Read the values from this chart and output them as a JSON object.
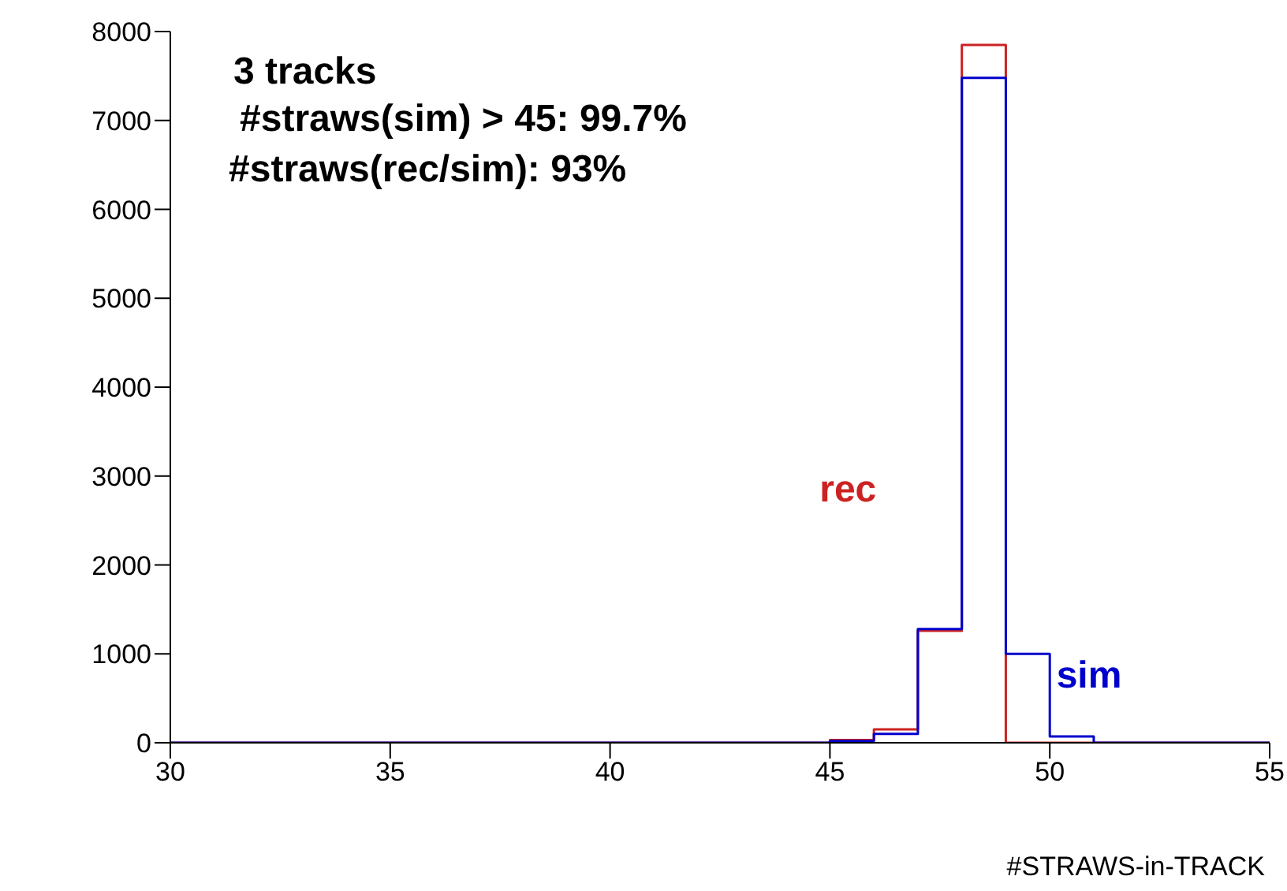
{
  "chart_data": {
    "type": "histogram",
    "xlabel": "#STRAWS-in-TRACK",
    "annotations": [
      "3 tracks",
      "#straws(sim) > 45: 99.7%",
      "#straws(rec/sim): 93%"
    ],
    "bins": [
      30,
      31,
      32,
      33,
      34,
      35,
      36,
      37,
      38,
      39,
      40,
      41,
      42,
      43,
      44,
      45,
      46,
      47,
      48,
      49,
      50,
      51,
      52,
      53,
      54,
      55
    ],
    "series": [
      {
        "name": "rec",
        "color": "#cc2222",
        "values": [
          0,
          0,
          0,
          0,
          0,
          0,
          0,
          0,
          0,
          0,
          0,
          0,
          0,
          0,
          0,
          30,
          150,
          1260,
          7850,
          0,
          0,
          0,
          0,
          0,
          0
        ]
      },
      {
        "name": "sim",
        "color": "#0000cc",
        "values": [
          0,
          0,
          0,
          0,
          0,
          0,
          0,
          0,
          0,
          0,
          0,
          0,
          0,
          0,
          0,
          20,
          100,
          1280,
          7480,
          1000,
          70,
          0,
          0,
          0,
          0
        ]
      }
    ],
    "xlim": [
      30,
      55
    ],
    "xticks": [
      30,
      35,
      40,
      45,
      50,
      55
    ],
    "ylim": [
      0,
      8000
    ],
    "yticks": [
      0,
      1000,
      2000,
      3000,
      4000,
      5000,
      6000,
      7000,
      8000
    ],
    "grid": false
  }
}
